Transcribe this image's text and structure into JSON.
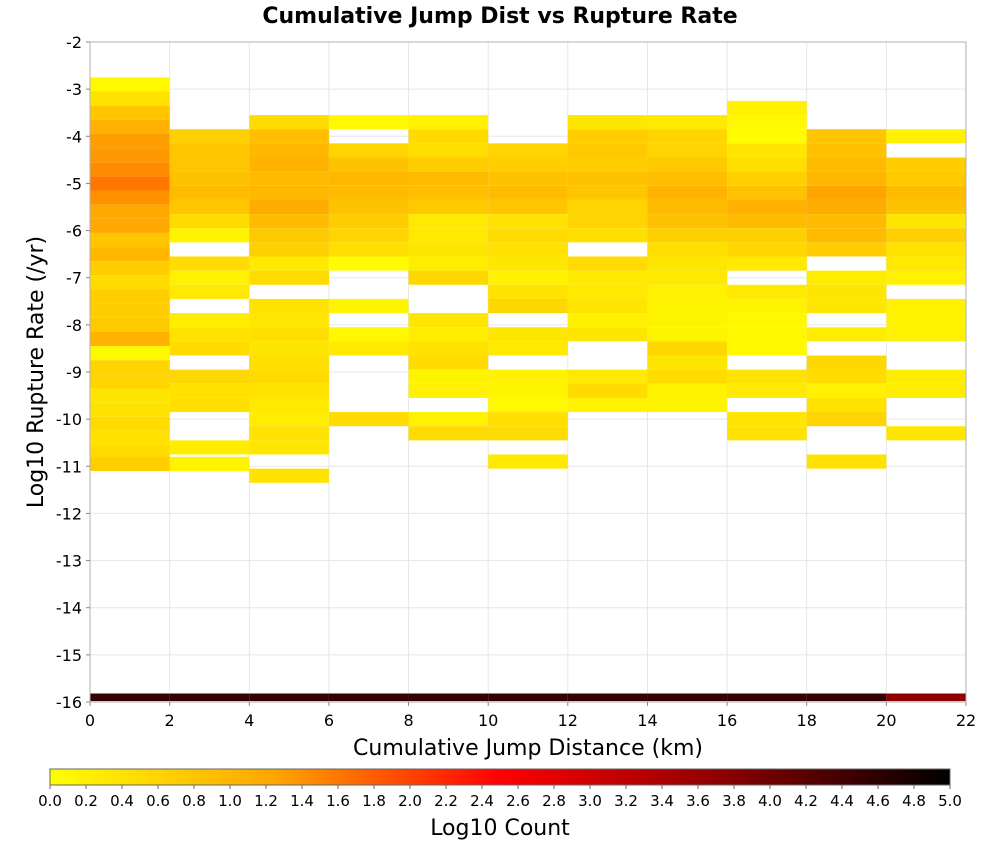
{
  "chart_data": {
    "type": "heatmap",
    "title": "Cumulative Jump Dist vs Rupture Rate",
    "xlabel": "Cumulative Jump Distance (km)",
    "ylabel": "Log10 Rupture Rate (/yr)",
    "colorbar_label": "Log10 Count",
    "xlim": [
      0,
      22
    ],
    "ylim": [
      -16,
      -2
    ],
    "x_ticks": [
      0,
      2,
      4,
      6,
      8,
      10,
      12,
      14,
      16,
      18,
      20,
      22
    ],
    "y_ticks": [
      -2,
      -3,
      -4,
      -5,
      -6,
      -7,
      -8,
      -9,
      -10,
      -11,
      -12,
      -13,
      -14,
      -15,
      -16
    ],
    "color_range": [
      0.0,
      5.0
    ],
    "colorbar_ticks": [
      "0.0",
      "0.2",
      "0.4",
      "0.6",
      "0.8",
      "1.0",
      "1.2",
      "1.4",
      "1.6",
      "1.8",
      "2.0",
      "2.2",
      "2.4",
      "2.6",
      "2.8",
      "3.0",
      "3.2",
      "3.4",
      "3.6",
      "3.8",
      "4.0",
      "4.2",
      "4.4",
      "4.6",
      "4.8",
      "5.0"
    ],
    "colormap": [
      "#ffff00",
      "#ffa500",
      "#ff0000",
      "#8b0000",
      "#000000"
    ],
    "x_bin_width": 2,
    "y_bin_width": 0.3,
    "columns": [
      {
        "x": 1,
        "cells": [
          [
            -2.9,
            0.1
          ],
          [
            -3.2,
            0.4
          ],
          [
            -3.5,
            0.8
          ],
          [
            -3.8,
            1.1
          ],
          [
            -4.1,
            1.3
          ],
          [
            -4.4,
            1.35
          ],
          [
            -4.7,
            1.45
          ],
          [
            -5.0,
            1.6
          ],
          [
            -5.3,
            1.4
          ],
          [
            -5.6,
            1.2
          ],
          [
            -5.9,
            1.2
          ],
          [
            -6.2,
            0.8
          ],
          [
            -6.5,
            1.0
          ],
          [
            -6.8,
            0.7
          ],
          [
            -7.1,
            0.5
          ],
          [
            -7.4,
            0.7
          ],
          [
            -7.7,
            0.7
          ],
          [
            -8.0,
            0.75
          ],
          [
            -8.3,
            1.05
          ],
          [
            -8.6,
            0.1
          ],
          [
            -8.9,
            0.6
          ],
          [
            -9.2,
            0.6
          ],
          [
            -9.5,
            0.35
          ],
          [
            -9.8,
            0.4
          ],
          [
            -10.1,
            0.5
          ],
          [
            -10.4,
            0.4
          ],
          [
            -10.7,
            0.5
          ],
          [
            -10.95,
            0.7
          ]
        ]
      },
      {
        "x": 3,
        "cells": [
          [
            -4.0,
            0.65
          ],
          [
            -4.3,
            0.8
          ],
          [
            -4.6,
            0.8
          ],
          [
            -4.9,
            0.85
          ],
          [
            -5.2,
            0.95
          ],
          [
            -5.5,
            0.8
          ],
          [
            -5.8,
            0.5
          ],
          [
            -6.1,
            0.15
          ],
          [
            -6.7,
            0.5
          ],
          [
            -7.0,
            0.2
          ],
          [
            -7.3,
            0.3
          ],
          [
            -7.9,
            0.25
          ],
          [
            -8.2,
            0.4
          ],
          [
            -8.5,
            0.5
          ],
          [
            -9.1,
            0.55
          ],
          [
            -9.4,
            0.4
          ],
          [
            -9.7,
            0.45
          ],
          [
            -10.6,
            0.25
          ],
          [
            -10.95,
            0.15
          ]
        ]
      },
      {
        "x": 5,
        "cells": [
          [
            -3.7,
            0.5
          ],
          [
            -4.0,
            0.9
          ],
          [
            -4.3,
            1.0
          ],
          [
            -4.6,
            1.05
          ],
          [
            -4.9,
            0.95
          ],
          [
            -5.2,
            1.0
          ],
          [
            -5.5,
            1.15
          ],
          [
            -5.8,
            0.95
          ],
          [
            -6.1,
            0.75
          ],
          [
            -6.4,
            0.65
          ],
          [
            -6.7,
            0.3
          ],
          [
            -7.0,
            0.5
          ],
          [
            -7.6,
            0.4
          ],
          [
            -7.9,
            0.35
          ],
          [
            -8.2,
            0.45
          ],
          [
            -8.5,
            0.35
          ],
          [
            -8.8,
            0.45
          ],
          [
            -9.1,
            0.5
          ],
          [
            -9.4,
            0.4
          ],
          [
            -9.7,
            0.3
          ],
          [
            -10.0,
            0.25
          ],
          [
            -10.3,
            0.4
          ],
          [
            -10.6,
            0.35
          ],
          [
            -11.2,
            0.4
          ]
        ]
      },
      {
        "x": 7,
        "cells": [
          [
            -3.7,
            0.1
          ],
          [
            -4.3,
            0.6
          ],
          [
            -4.6,
            0.85
          ],
          [
            -4.9,
            1.0
          ],
          [
            -5.2,
            0.95
          ],
          [
            -5.5,
            0.85
          ],
          [
            -5.8,
            0.7
          ],
          [
            -6.1,
            0.6
          ],
          [
            -6.4,
            0.45
          ],
          [
            -6.7,
            0.05
          ],
          [
            -7.6,
            0.15
          ],
          [
            -8.2,
            0.1
          ],
          [
            -8.5,
            0.3
          ],
          [
            -10.0,
            0.5
          ]
        ]
      },
      {
        "x": 9,
        "cells": [
          [
            -3.7,
            0.2
          ],
          [
            -4.0,
            0.5
          ],
          [
            -4.3,
            0.45
          ],
          [
            -4.6,
            0.7
          ],
          [
            -4.9,
            0.95
          ],
          [
            -5.2,
            0.9
          ],
          [
            -5.5,
            0.75
          ],
          [
            -5.8,
            0.3
          ],
          [
            -6.1,
            0.3
          ],
          [
            -6.4,
            0.35
          ],
          [
            -6.7,
            0.25
          ],
          [
            -7.0,
            0.55
          ],
          [
            -7.9,
            0.35
          ],
          [
            -8.2,
            0.25
          ],
          [
            -8.5,
            0.4
          ],
          [
            -8.8,
            0.5
          ],
          [
            -9.1,
            0.15
          ],
          [
            -9.4,
            0.2
          ],
          [
            -10.0,
            0.2
          ],
          [
            -10.3,
            0.5
          ]
        ]
      },
      {
        "x": 11,
        "cells": [
          [
            -4.3,
            0.6
          ],
          [
            -4.6,
            0.7
          ],
          [
            -4.9,
            0.85
          ],
          [
            -5.2,
            0.95
          ],
          [
            -5.5,
            0.8
          ],
          [
            -5.8,
            0.4
          ],
          [
            -6.1,
            0.5
          ],
          [
            -6.4,
            0.4
          ],
          [
            -6.7,
            0.35
          ],
          [
            -7.0,
            0.2
          ],
          [
            -7.3,
            0.4
          ],
          [
            -7.6,
            0.55
          ],
          [
            -8.2,
            0.35
          ],
          [
            -8.5,
            0.3
          ],
          [
            -9.1,
            0.2
          ],
          [
            -9.4,
            0.15
          ],
          [
            -9.7,
            0.1
          ],
          [
            -10.0,
            0.45
          ],
          [
            -10.3,
            0.5
          ],
          [
            -10.9,
            0.3
          ]
        ]
      },
      {
        "x": 13,
        "cells": [
          [
            -3.7,
            0.35
          ],
          [
            -4.0,
            0.7
          ],
          [
            -4.3,
            0.75
          ],
          [
            -4.6,
            0.7
          ],
          [
            -4.9,
            0.85
          ],
          [
            -5.2,
            0.8
          ],
          [
            -5.5,
            0.6
          ],
          [
            -5.8,
            0.6
          ],
          [
            -6.1,
            0.45
          ],
          [
            -6.7,
            0.5
          ],
          [
            -7.0,
            0.3
          ],
          [
            -7.3,
            0.3
          ],
          [
            -7.6,
            0.35
          ],
          [
            -7.9,
            0.2
          ],
          [
            -8.2,
            0.35
          ],
          [
            -9.1,
            0.3
          ],
          [
            -9.4,
            0.5
          ],
          [
            -9.7,
            0.2
          ]
        ]
      },
      {
        "x": 15,
        "cells": [
          [
            -3.7,
            0.3
          ],
          [
            -4.0,
            0.6
          ],
          [
            -4.3,
            0.6
          ],
          [
            -4.6,
            0.75
          ],
          [
            -4.9,
            0.9
          ],
          [
            -5.2,
            1.05
          ],
          [
            -5.5,
            0.95
          ],
          [
            -5.8,
            0.85
          ],
          [
            -6.1,
            0.65
          ],
          [
            -6.4,
            0.45
          ],
          [
            -6.7,
            0.35
          ],
          [
            -7.0,
            0.3
          ],
          [
            -7.3,
            0.2
          ],
          [
            -7.6,
            0.15
          ],
          [
            -7.9,
            0.15
          ],
          [
            -8.2,
            0.15
          ],
          [
            -8.5,
            0.55
          ],
          [
            -8.8,
            0.35
          ],
          [
            -9.1,
            0.5
          ],
          [
            -9.4,
            0.2
          ],
          [
            -9.7,
            0.15
          ]
        ]
      },
      {
        "x": 17,
        "cells": [
          [
            -3.4,
            0.2
          ],
          [
            -3.7,
            0.1
          ],
          [
            -4.0,
            0.05
          ],
          [
            -4.3,
            0.35
          ],
          [
            -4.6,
            0.45
          ],
          [
            -4.9,
            0.65
          ],
          [
            -5.2,
            0.85
          ],
          [
            -5.5,
            1.1
          ],
          [
            -5.8,
            0.95
          ],
          [
            -6.1,
            0.65
          ],
          [
            -6.4,
            0.55
          ],
          [
            -6.7,
            0.3
          ],
          [
            -7.3,
            0.3
          ],
          [
            -7.6,
            0.15
          ],
          [
            -7.9,
            0.1
          ],
          [
            -8.2,
            0.1
          ],
          [
            -8.5,
            0.1
          ],
          [
            -9.1,
            0.4
          ],
          [
            -9.4,
            0.3
          ],
          [
            -10.0,
            0.35
          ],
          [
            -10.3,
            0.4
          ]
        ]
      },
      {
        "x": 19,
        "cells": [
          [
            -4.0,
            0.8
          ],
          [
            -4.3,
            0.85
          ],
          [
            -4.6,
            0.95
          ],
          [
            -4.9,
            1.0
          ],
          [
            -5.2,
            1.25
          ],
          [
            -5.5,
            1.15
          ],
          [
            -5.8,
            0.95
          ],
          [
            -6.1,
            0.95
          ],
          [
            -6.4,
            0.7
          ],
          [
            -7.0,
            0.25
          ],
          [
            -7.3,
            0.35
          ],
          [
            -7.6,
            0.35
          ],
          [
            -8.2,
            0.25
          ],
          [
            -8.8,
            0.55
          ],
          [
            -9.1,
            0.5
          ],
          [
            -9.4,
            0.2
          ],
          [
            -9.7,
            0.4
          ],
          [
            -10.0,
            0.6
          ],
          [
            -10.9,
            0.4
          ]
        ]
      },
      {
        "x": 21,
        "cells": [
          [
            -4.0,
            0.2
          ],
          [
            -4.6,
            0.7
          ],
          [
            -4.9,
            0.75
          ],
          [
            -5.2,
            0.95
          ],
          [
            -5.5,
            0.85
          ],
          [
            -5.8,
            0.35
          ],
          [
            -6.1,
            0.65
          ],
          [
            -6.4,
            0.4
          ],
          [
            -6.7,
            0.3
          ],
          [
            -7.0,
            0.2
          ],
          [
            -7.6,
            0.2
          ],
          [
            -7.9,
            0.15
          ],
          [
            -8.2,
            0.2
          ],
          [
            -9.1,
            0.25
          ],
          [
            -9.4,
            0.25
          ],
          [
            -10.3,
            0.35
          ]
        ]
      }
    ],
    "bottom_row": {
      "y": -15.9,
      "values": [
        4.5,
        4.5,
        4.5,
        4.5,
        4.5,
        4.5,
        4.5,
        4.5,
        4.5,
        4.5,
        3.7
      ]
    }
  }
}
